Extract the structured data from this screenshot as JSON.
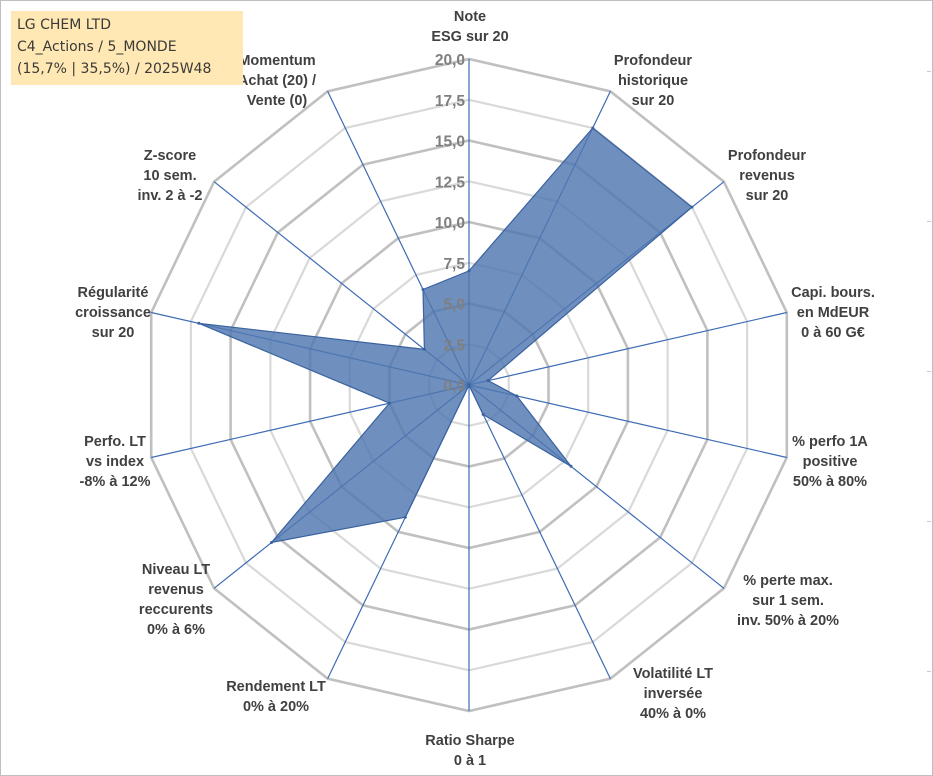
{
  "header": {
    "line1": "LG CHEM LTD",
    "line2": "C4_Actions / 5_MONDE",
    "line3": "(15,7% | 35,5%) / 2025W48"
  },
  "colors": {
    "fill": "#4f78b0",
    "stroke": "#3a62a0",
    "axis": "#3d6bb5",
    "grid_major": "#c0c0c0",
    "grid_minor": "#d9d9d9"
  },
  "chart_data": {
    "type": "radar",
    "title": "LG CHEM LTD",
    "rmin": 0,
    "rmax": 20,
    "tick_step": 2.5,
    "tick_labels": [
      "0,0",
      "2,5",
      "5,0",
      "7,5",
      "10,0",
      "12,5",
      "15,0",
      "17,5",
      "20,0"
    ],
    "axes": [
      {
        "label": [
          "Note",
          "ESG sur 20"
        ],
        "value": 7.0
      },
      {
        "label": [
          "Profondeur",
          "historique",
          "sur 20"
        ],
        "value": 17.5
      },
      {
        "label": [
          "Profondeur",
          "revenus",
          "sur 20"
        ],
        "value": 17.5
      },
      {
        "label": [
          "Capi. bours.",
          "en MdEUR",
          "0 à 60 G€"
        ],
        "value": 1.2
      },
      {
        "label": [
          "% perfo 1A",
          "positive",
          "50% à 80%"
        ],
        "value": 3.0
      },
      {
        "label": [
          "% perte max.",
          "sur 1 sem.",
          "inv. 50% à 20%"
        ],
        "value": 8.0
      },
      {
        "label": [
          "Volatilité LT",
          "inversée",
          "40% à 0%"
        ],
        "value": 2.0
      },
      {
        "label": [
          "Ratio Sharpe",
          "0 à 1"
        ],
        "value": 0.0
      },
      {
        "label": [
          "Rendement LT",
          "0% à 20%"
        ],
        "value": 9.0
      },
      {
        "label": [
          "Niveau LT",
          "revenus",
          "reccurents",
          "0% à 6%"
        ],
        "value": 15.5
      },
      {
        "label": [
          "Perfo. LT",
          "vs index",
          "-8% à 12%"
        ],
        "value": 5.0
      },
      {
        "label": [
          "Régularité",
          "croissance",
          "sur 20"
        ],
        "value": 17.0
      },
      {
        "label": [
          "Z-score",
          "10 sem.",
          "inv. 2 à -2"
        ],
        "value": 3.5
      },
      {
        "label": [
          "Momentum",
          "Achat (20) /",
          "Vente (0)"
        ],
        "value": 6.5
      }
    ]
  }
}
